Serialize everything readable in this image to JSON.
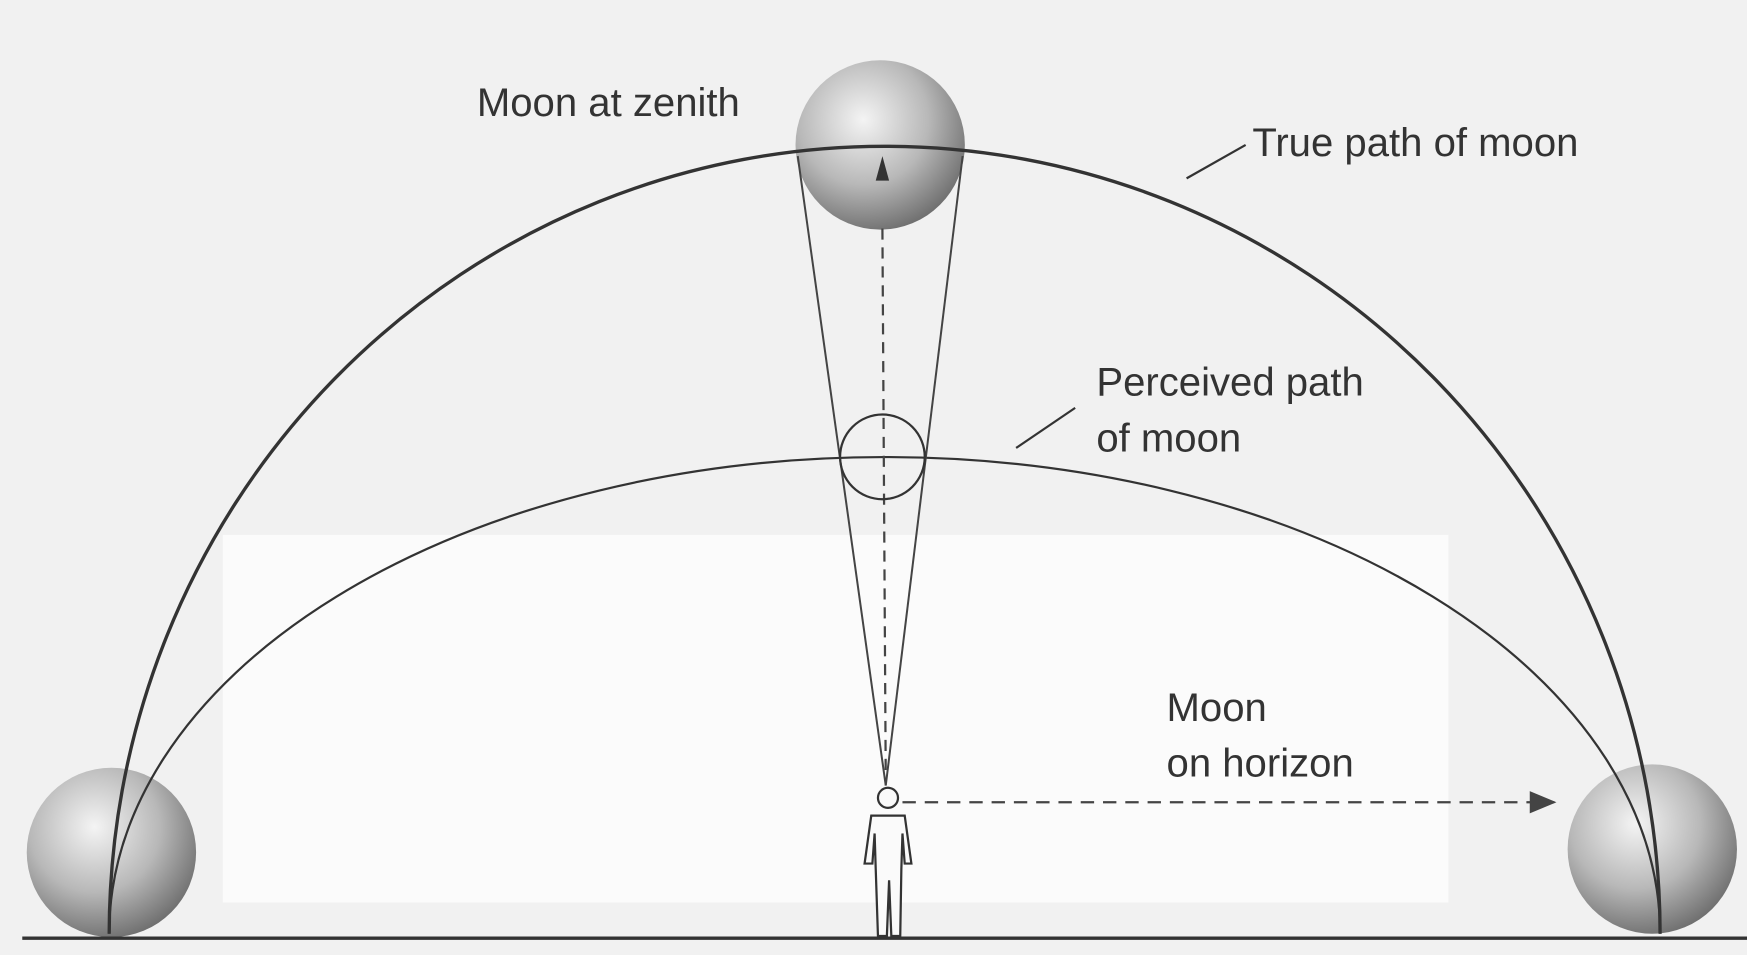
{
  "labels": {
    "zenith": "Moon at zenith",
    "true_path": "True path of moon",
    "perceived_path": [
      "Perceived path",
      "of moon"
    ],
    "horizon": [
      "Moon",
      "on horizon"
    ]
  }
}
